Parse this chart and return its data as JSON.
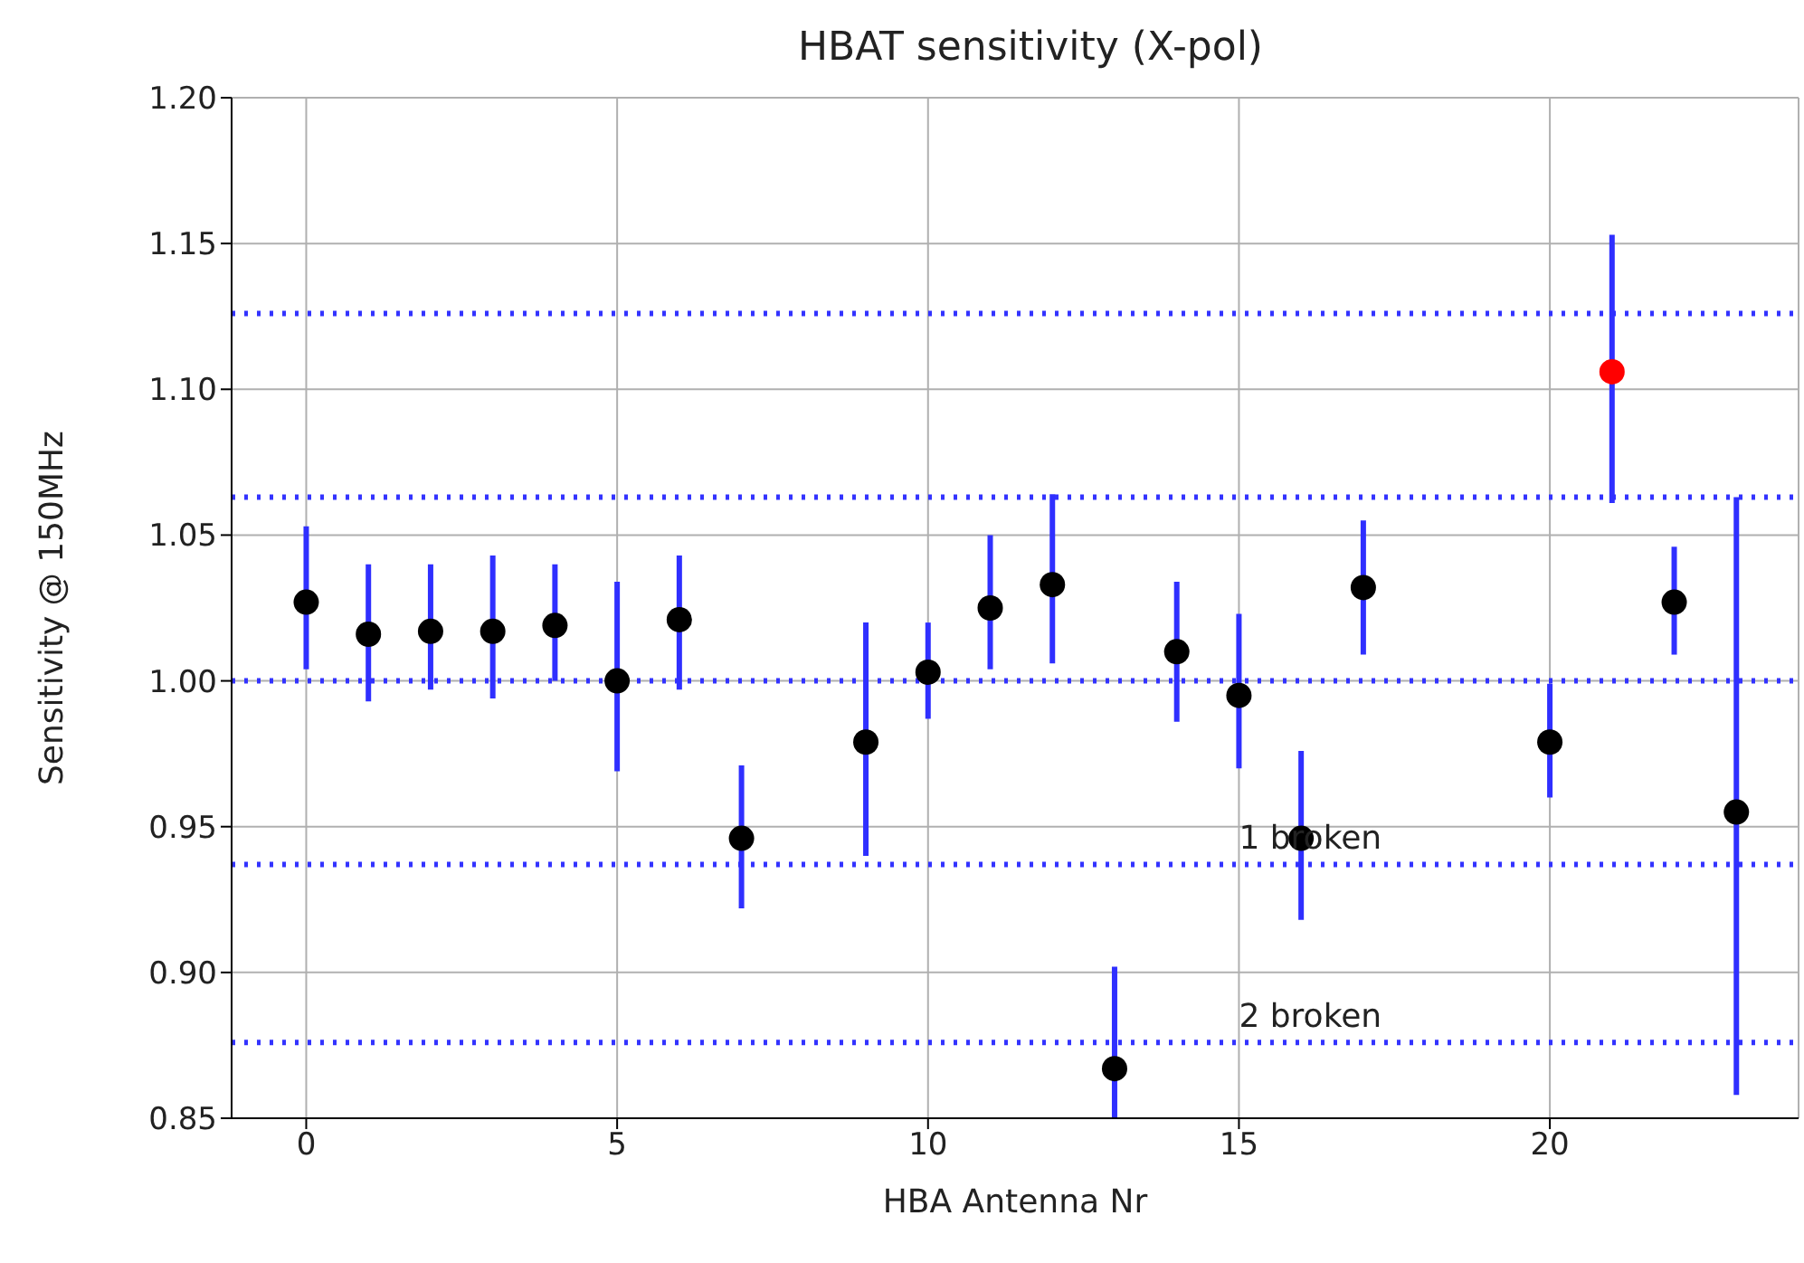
{
  "chart_data": {
    "type": "scatter",
    "title": "HBAT sensitivity (X-pol)",
    "xlabel": "HBA Antenna Nr",
    "ylabel": "Sensitivity @ 150MHz",
    "series": [
      {
        "color": "#000000",
        "x": [
          0,
          1,
          2,
          3,
          4,
          5,
          6,
          7,
          9,
          10,
          11,
          12,
          13,
          14,
          15,
          16,
          17,
          20,
          22,
          23
        ],
        "values": [
          1.027,
          1.016,
          1.017,
          1.017,
          1.019,
          1.0,
          1.021,
          0.946,
          0.979,
          1.003,
          1.025,
          1.033,
          0.867,
          1.01,
          0.995,
          0.946,
          1.032,
          0.979,
          1.027,
          0.955
        ],
        "errors": [
          [
            1.004,
            1.053
          ],
          [
            0.993,
            1.04
          ],
          [
            0.997,
            1.04
          ],
          [
            0.994,
            1.043
          ],
          [
            1.0,
            1.04
          ],
          [
            0.969,
            1.034
          ],
          [
            0.997,
            1.043
          ],
          [
            0.922,
            0.971
          ],
          [
            0.94,
            1.02
          ],
          [
            0.987,
            1.02
          ],
          [
            1.004,
            1.05
          ],
          [
            1.006,
            1.064
          ],
          [
            0.85,
            0.902
          ],
          [
            0.986,
            1.034
          ],
          [
            0.97,
            1.023
          ],
          [
            0.918,
            0.976
          ],
          [
            1.009,
            1.055
          ],
          [
            0.96,
            0.999
          ],
          [
            1.009,
            1.046
          ],
          [
            0.858,
            1.063
          ]
        ]
      },
      {
        "color": "#ff0000",
        "x": [
          21
        ],
        "values": [
          1.106
        ],
        "errors": [
          [
            1.061,
            1.153
          ]
        ]
      }
    ],
    "xlim": [
      -1.2,
      24
    ],
    "xticks": [
      0,
      5,
      10,
      15,
      20
    ],
    "ylim": [
      0.85,
      1.2
    ],
    "yticks": [
      0.85,
      {
        "value": 0.9,
        "label": "0.90"
      },
      0.95,
      {
        "value": 1.0,
        "label": "1.00"
      },
      1.05,
      {
        "value": 1.1,
        "label": "1.10"
      },
      1.15,
      {
        "value": 1.2,
        "label": "1.20"
      }
    ],
    "ref_lines": [
      {
        "axis": "y",
        "value": 1.126,
        "color": "#3333ff",
        "line_style": "dotted"
      },
      {
        "axis": "y",
        "value": 1.063,
        "color": "#3333ff",
        "line_style": "dotted"
      },
      {
        "axis": "y",
        "value": 1.0,
        "color": "#3333ff",
        "line_style": "dotted"
      },
      {
        "axis": "y",
        "value": 0.937,
        "color": "#3333ff",
        "line_style": "dotted"
      },
      {
        "axis": "y",
        "value": 0.876,
        "color": "#3333ff",
        "line_style": "dotted"
      }
    ],
    "annotations": [
      {
        "text": "1 broken",
        "x": 15,
        "y": 0.94
      },
      {
        "text": "2 broken",
        "x": 15,
        "y": 0.879
      }
    ],
    "grid": true,
    "marker": "circle"
  }
}
